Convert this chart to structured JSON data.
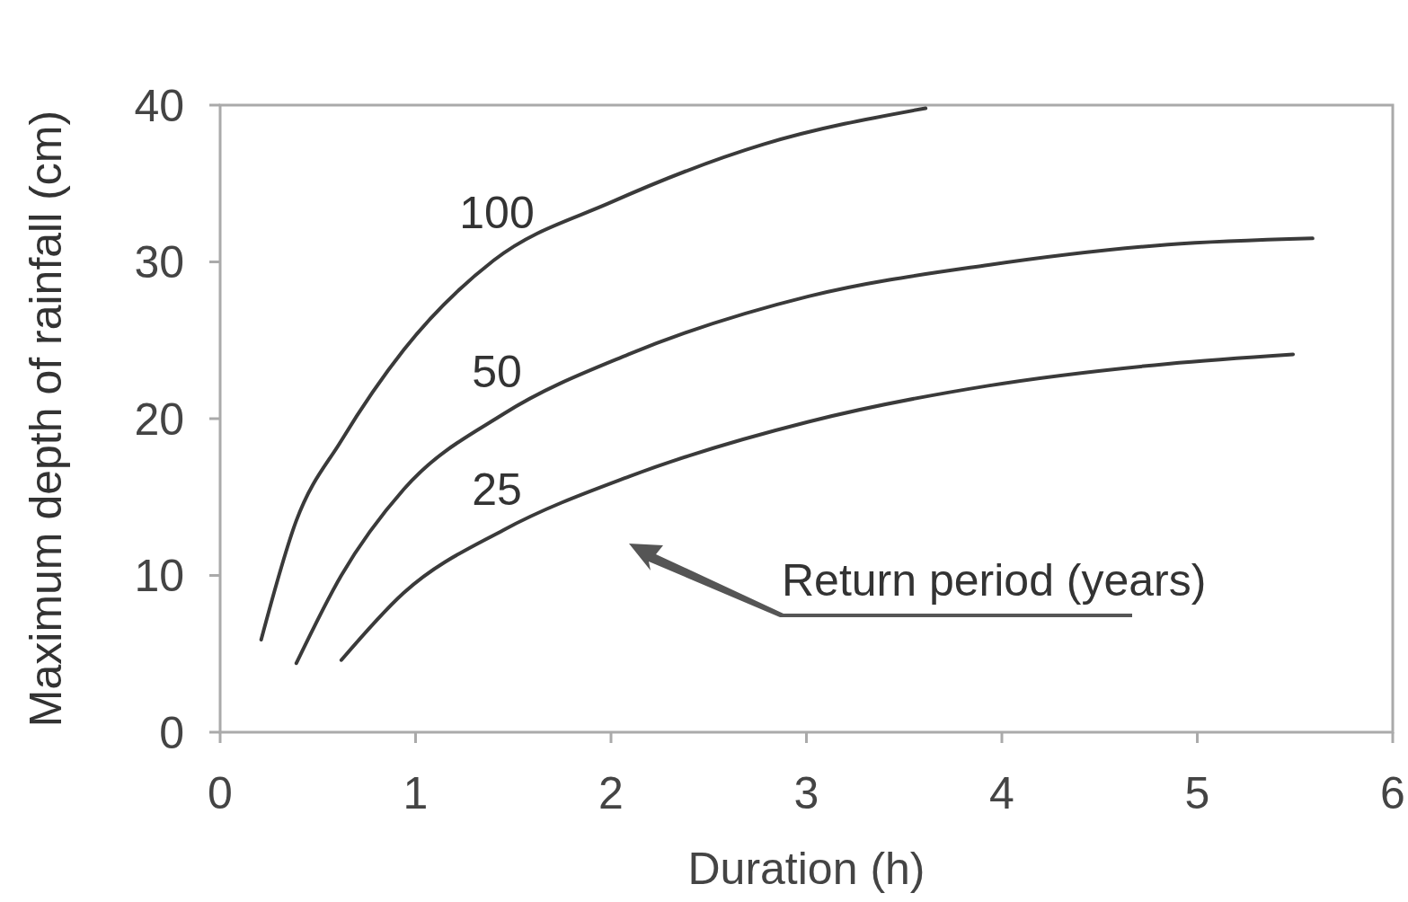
{
  "chart_data": {
    "type": "line",
    "xlabel": "Duration (h)",
    "ylabel": "Maximum depth of rainfall (cm)",
    "xlim": [
      0,
      6
    ],
    "ylim": [
      0,
      40
    ],
    "xticks": [
      0,
      1,
      2,
      3,
      4,
      5,
      6
    ],
    "yticks": [
      0,
      10,
      20,
      30,
      40
    ],
    "series": [
      {
        "name": "100",
        "color": "#3a3a3a",
        "x": [
          0.21,
          0.39,
          0.62,
          0.94,
          1.4,
          2.0,
          2.78,
          3.61
        ],
        "values": [
          5.9,
          13.5,
          18.6,
          24.4,
          30.1,
          33.8,
          37.5,
          39.8
        ]
      },
      {
        "name": "50",
        "color": "#3a3a3a",
        "x": [
          0.39,
          0.62,
          0.94,
          1.45,
          2.09,
          3.01,
          3.93,
          4.85,
          5.59
        ],
        "values": [
          4.4,
          10.0,
          15.5,
          20.3,
          24.1,
          27.8,
          29.8,
          31.1,
          31.5
        ]
      },
      {
        "name": "25",
        "color": "#3a3a3a",
        "x": [
          0.62,
          0.94,
          1.45,
          2.09,
          3.01,
          3.93,
          4.85,
          5.49
        ],
        "values": [
          4.6,
          8.9,
          12.9,
          16.3,
          19.8,
          22.1,
          23.5,
          24.1
        ]
      }
    ],
    "annotations": [
      "Return period (years)"
    ],
    "grid": false,
    "marker": "none",
    "line_style": "solid"
  }
}
